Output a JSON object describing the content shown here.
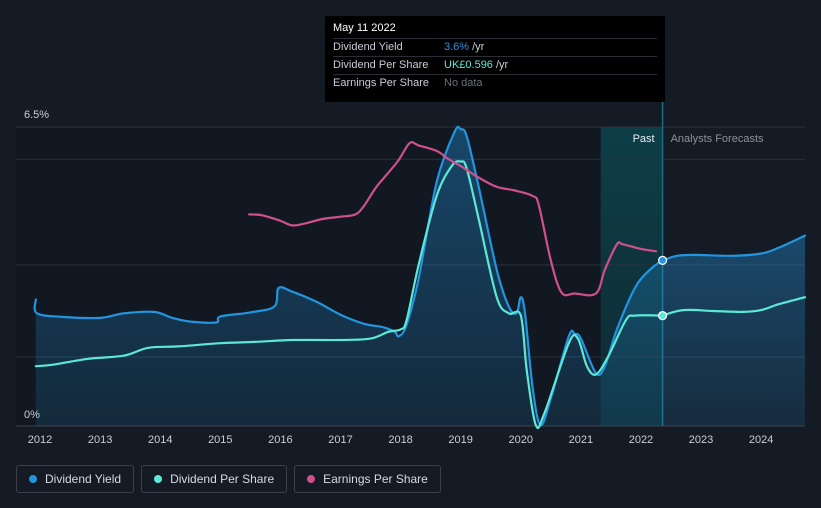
{
  "tooltip": {
    "date": "May 11 2022",
    "rows": [
      {
        "label": "Dividend Yield",
        "value": "3.6%",
        "unit": "/yr"
      },
      {
        "label": "Dividend Per Share",
        "value": "UK£0.596",
        "unit": "/yr"
      },
      {
        "label": "Earnings Per Share",
        "value": "No data",
        "unit": ""
      }
    ]
  },
  "legend": [
    {
      "label": "Dividend Yield",
      "color": "#2394df"
    },
    {
      "label": "Dividend Per Share",
      "color": "#5ce8d7"
    },
    {
      "label": "Earnings Per Share",
      "color": "#d0508c"
    }
  ],
  "chart_data": {
    "type": "line",
    "x_ticks": [
      "2012",
      "2013",
      "2014",
      "2015",
      "2016",
      "2017",
      "2018",
      "2019",
      "2020",
      "2021",
      "2022",
      "2023",
      "2024"
    ],
    "y_ticks": [
      "6.5%",
      "0%"
    ],
    "ylim": [
      0,
      6.5
    ],
    "xlim": [
      2011.6,
      2024.73
    ],
    "regions": {
      "past_label": "Past",
      "forecast_label": "Analysts Forecasts",
      "past_start": 2021.33,
      "cursor": 2022.36
    },
    "cursor_values": {
      "yield": 3.6,
      "dps": 2.4
    },
    "series": [
      {
        "name": "Dividend Yield",
        "color": "#2394df",
        "fill": true,
        "points": [
          [
            2011.93,
            2.75
          ],
          [
            2011.95,
            2.45
          ],
          [
            2012.4,
            2.37
          ],
          [
            2013.0,
            2.35
          ],
          [
            2013.4,
            2.45
          ],
          [
            2013.9,
            2.48
          ],
          [
            2014.2,
            2.35
          ],
          [
            2014.5,
            2.27
          ],
          [
            2014.93,
            2.25
          ],
          [
            2015.0,
            2.38
          ],
          [
            2015.5,
            2.47
          ],
          [
            2015.9,
            2.6
          ],
          [
            2015.97,
            3.0
          ],
          [
            2016.2,
            2.92
          ],
          [
            2016.6,
            2.7
          ],
          [
            2017.0,
            2.42
          ],
          [
            2017.4,
            2.22
          ],
          [
            2017.7,
            2.15
          ],
          [
            2017.9,
            2.05
          ],
          [
            2017.97,
            1.95
          ],
          [
            2018.1,
            2.2
          ],
          [
            2018.3,
            3.2
          ],
          [
            2018.6,
            5.3
          ],
          [
            2018.9,
            6.4
          ],
          [
            2019.0,
            6.45
          ],
          [
            2019.1,
            6.3
          ],
          [
            2019.3,
            5.2
          ],
          [
            2019.6,
            3.4
          ],
          [
            2019.8,
            2.6
          ],
          [
            2019.93,
            2.45
          ],
          [
            2020.0,
            2.8
          ],
          [
            2020.07,
            2.45
          ],
          [
            2020.2,
            0.8
          ],
          [
            2020.33,
            0.02
          ],
          [
            2020.5,
            0.6
          ],
          [
            2020.8,
            1.95
          ],
          [
            2020.9,
            2.0
          ],
          [
            2021.0,
            1.9
          ],
          [
            2021.25,
            1.15
          ],
          [
            2021.4,
            1.3
          ],
          [
            2021.6,
            2.1
          ],
          [
            2021.9,
            3.0
          ],
          [
            2022.15,
            3.4
          ],
          [
            2022.36,
            3.6
          ]
        ]
      },
      {
        "name": "Dividend Yield (forecast)",
        "color": "#2394df",
        "fill": true,
        "points": [
          [
            2022.36,
            3.6
          ],
          [
            2022.6,
            3.7
          ],
          [
            2022.9,
            3.72
          ],
          [
            2023.5,
            3.7
          ],
          [
            2024.0,
            3.75
          ],
          [
            2024.3,
            3.88
          ],
          [
            2024.73,
            4.14
          ]
        ]
      },
      {
        "name": "Dividend Per Share",
        "color": "#5ce8d7",
        "fill": false,
        "points": [
          [
            2011.93,
            1.3
          ],
          [
            2012.2,
            1.33
          ],
          [
            2012.8,
            1.46
          ],
          [
            2013.4,
            1.53
          ],
          [
            2013.8,
            1.7
          ],
          [
            2014.3,
            1.73
          ],
          [
            2015.0,
            1.8
          ],
          [
            2015.6,
            1.83
          ],
          [
            2016.2,
            1.87
          ],
          [
            2017.0,
            1.87
          ],
          [
            2017.5,
            1.9
          ],
          [
            2017.8,
            2.05
          ],
          [
            2018.0,
            2.1
          ],
          [
            2018.1,
            2.3
          ],
          [
            2018.3,
            3.5
          ],
          [
            2018.6,
            5.0
          ],
          [
            2018.85,
            5.65
          ],
          [
            2019.0,
            5.75
          ],
          [
            2019.1,
            5.6
          ],
          [
            2019.3,
            4.5
          ],
          [
            2019.6,
            2.8
          ],
          [
            2019.8,
            2.45
          ],
          [
            2020.0,
            2.4
          ],
          [
            2020.1,
            1.2
          ],
          [
            2020.25,
            0.02
          ],
          [
            2020.4,
            0.3
          ],
          [
            2020.8,
            1.8
          ],
          [
            2020.95,
            1.9
          ],
          [
            2021.1,
            1.3
          ],
          [
            2021.25,
            1.12
          ],
          [
            2021.45,
            1.5
          ],
          [
            2021.75,
            2.3
          ],
          [
            2021.9,
            2.4
          ],
          [
            2022.36,
            2.4
          ]
        ]
      },
      {
        "name": "Dividend Per Share (forecast)",
        "color": "#5ce8d7",
        "fill": false,
        "points": [
          [
            2022.36,
            2.4
          ],
          [
            2022.7,
            2.52
          ],
          [
            2023.2,
            2.5
          ],
          [
            2023.7,
            2.48
          ],
          [
            2024.0,
            2.52
          ],
          [
            2024.3,
            2.65
          ],
          [
            2024.73,
            2.8
          ]
        ]
      },
      {
        "name": "Earnings Per Share",
        "color": "#d0508c",
        "fill": false,
        "points": [
          [
            2015.48,
            4.6
          ],
          [
            2015.7,
            4.58
          ],
          [
            2016.0,
            4.46
          ],
          [
            2016.2,
            4.36
          ],
          [
            2016.4,
            4.4
          ],
          [
            2016.7,
            4.5
          ],
          [
            2017.0,
            4.55
          ],
          [
            2017.25,
            4.6
          ],
          [
            2017.4,
            4.8
          ],
          [
            2017.6,
            5.2
          ],
          [
            2017.95,
            5.75
          ],
          [
            2018.15,
            6.15
          ],
          [
            2018.3,
            6.1
          ],
          [
            2018.6,
            5.98
          ],
          [
            2018.8,
            5.8
          ],
          [
            2019.0,
            5.65
          ],
          [
            2019.3,
            5.4
          ],
          [
            2019.6,
            5.2
          ],
          [
            2019.9,
            5.12
          ],
          [
            2020.2,
            5.0
          ],
          [
            2020.3,
            4.8
          ],
          [
            2020.5,
            3.6
          ],
          [
            2020.68,
            2.9
          ],
          [
            2020.9,
            2.88
          ],
          [
            2021.25,
            2.88
          ],
          [
            2021.4,
            3.4
          ],
          [
            2021.6,
            3.95
          ],
          [
            2021.7,
            3.95
          ],
          [
            2022.0,
            3.85
          ],
          [
            2022.25,
            3.8
          ]
        ]
      }
    ]
  }
}
